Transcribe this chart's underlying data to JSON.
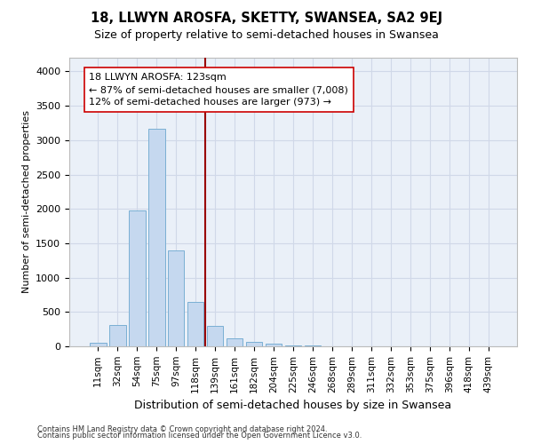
{
  "title": "18, LLWYN AROSFA, SKETTY, SWANSEA, SA2 9EJ",
  "subtitle": "Size of property relative to semi-detached houses in Swansea",
  "xlabel": "Distribution of semi-detached houses by size in Swansea",
  "ylabel": "Number of semi-detached properties",
  "footer1": "Contains HM Land Registry data © Crown copyright and database right 2024.",
  "footer2": "Contains public sector information licensed under the Open Government Licence v3.0.",
  "bar_labels": [
    "11sqm",
    "32sqm",
    "54sqm",
    "75sqm",
    "97sqm",
    "118sqm",
    "139sqm",
    "161sqm",
    "182sqm",
    "204sqm",
    "225sqm",
    "246sqm",
    "268sqm",
    "289sqm",
    "311sqm",
    "332sqm",
    "353sqm",
    "375sqm",
    "396sqm",
    "418sqm",
    "439sqm"
  ],
  "bar_values": [
    50,
    310,
    1975,
    3160,
    1390,
    640,
    300,
    115,
    65,
    45,
    15,
    8,
    5,
    2,
    1,
    0,
    0,
    0,
    0,
    0,
    0
  ],
  "bar_color": "#c5d8ef",
  "bar_edge_color": "#7aafd4",
  "grid_color": "#d0d8e8",
  "background_color": "#eaf0f8",
  "annotation_line1": "18 LLWYN AROSFA: 123sqm",
  "annotation_line2": "← 87% of semi-detached houses are smaller (7,008)",
  "annotation_line3": "12% of semi-detached houses are larger (973) →",
  "red_line_x": 5.5,
  "ylim": [
    0,
    4200
  ],
  "yticks": [
    0,
    500,
    1000,
    1500,
    2000,
    2500,
    3000,
    3500,
    4000
  ]
}
